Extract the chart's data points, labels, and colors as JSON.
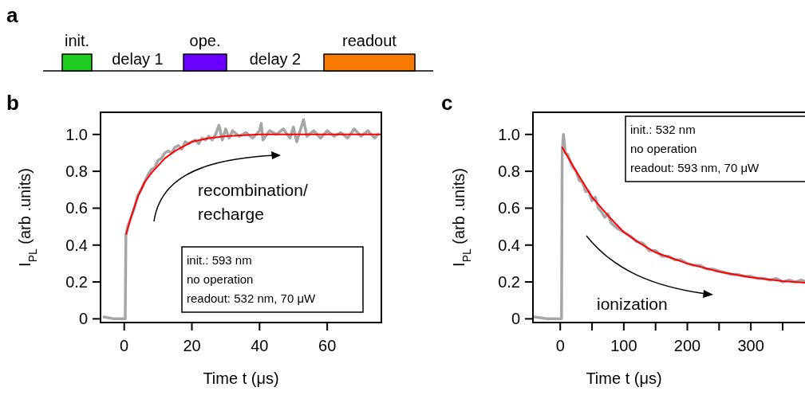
{
  "chart_data": [
    {
      "type": "other",
      "title": "a",
      "categories": [
        "init.",
        "delay 1",
        "ope.",
        "delay 2",
        "readout"
      ],
      "colors": [
        "#1fcc1f",
        null,
        "#6a00ff",
        null,
        "#f97a00"
      ]
    },
    {
      "type": "line",
      "title": "b",
      "xlabel": "Time t (μs)",
      "ylabel": "I$_{PL}$ (arb .units)",
      "xlim": [
        -7,
        76
      ],
      "ylim": [
        -0.02,
        1.12
      ],
      "xticks": [
        0,
        20,
        40,
        60
      ],
      "yticks": [
        0,
        0.2,
        0.4,
        0.6,
        0.8,
        {
          "value": 1,
          "label": "1.0"
        }
      ],
      "grid": false,
      "annotations": [
        "recombination/\nrecharge",
        "init.: 593 nm\nno operation\nreadout: 532 nm, 70 μW"
      ],
      "series": [
        {
          "color": "#a6a6a6",
          "x": [
            -6,
            -3,
            0,
            0.3,
            0.5,
            1,
            2,
            3,
            4,
            5,
            6,
            7,
            8,
            9,
            10,
            11,
            12,
            13,
            14,
            15,
            16,
            17,
            18,
            19,
            20,
            21,
            22,
            23,
            24,
            25,
            26,
            27,
            28,
            29,
            30,
            31,
            32,
            34,
            36,
            38,
            40,
            40.5,
            41,
            43,
            45,
            47,
            49,
            50,
            51,
            53,
            54,
            56,
            58,
            60,
            62,
            64,
            66,
            68,
            70,
            72,
            74,
            75
          ],
          "values": [
            0.01,
            0.0,
            0.0,
            0.0,
            0.45,
            0.5,
            0.55,
            0.6,
            0.67,
            0.7,
            0.74,
            0.78,
            0.81,
            0.82,
            0.86,
            0.87,
            0.9,
            0.91,
            0.9,
            0.93,
            0.94,
            0.92,
            0.96,
            0.95,
            0.96,
            0.97,
            0.95,
            0.98,
            0.97,
            0.99,
            0.97,
            1.0,
            1.05,
            0.97,
            1.03,
            0.98,
            1.02,
            0.99,
            1.01,
            0.98,
            1.02,
            1.06,
            0.97,
            1.02,
            1.0,
            1.03,
            0.98,
            1.04,
            0.96,
            1.08,
            0.99,
            1.02,
            0.98,
            1.02,
            0.99,
            1.01,
            0.98,
            1.03,
            0.99,
            1.02,
            0.98,
            1.0
          ]
        },
        {
          "color": "#ff0000",
          "x": [
            0.6,
            2,
            4,
            6,
            8,
            10,
            12,
            15,
            20,
            25,
            30,
            40,
            50,
            76
          ],
          "values": [
            0.46,
            0.55,
            0.66,
            0.74,
            0.79,
            0.83,
            0.87,
            0.91,
            0.96,
            0.98,
            0.99,
            1.0,
            1.0,
            1.0
          ]
        }
      ]
    },
    {
      "type": "line",
      "title": "c",
      "xlabel": "Time t (μs)",
      "ylabel": "I$_{PL}$ (arb .units)",
      "xlim": [
        -43,
        389
      ],
      "ylim": [
        -0.02,
        1.12
      ],
      "xticks": [
        0,
        {
          "value": 50,
          "label": null
        },
        100,
        {
          "value": 150,
          "label": null
        },
        200,
        {
          "value": 250,
          "label": null
        },
        300,
        {
          "value": 350,
          "label": null
        }
      ],
      "yticks": [
        0,
        0.2,
        0.4,
        0.6,
        0.8,
        {
          "value": 1,
          "label": "1.0"
        }
      ],
      "grid": false,
      "annotations": [
        "ionization",
        "init.: 532 nm\nno operation\nreadout: 593 nm, 70 μW"
      ],
      "series": [
        {
          "color": "#a6a6a6",
          "x": [
            -40,
            -20,
            0,
            2,
            3,
            5,
            8,
            12,
            16,
            20,
            25,
            30,
            35,
            40,
            45,
            50,
            55,
            60,
            65,
            70,
            75,
            80,
            90,
            100,
            110,
            120,
            130,
            140,
            150,
            160,
            170,
            180,
            190,
            200,
            210,
            220,
            230,
            240,
            250,
            260,
            270,
            280,
            290,
            300,
            310,
            320,
            330,
            340,
            350,
            360,
            370,
            380,
            388
          ],
          "values": [
            0.01,
            0.0,
            0.0,
            0.0,
            0.9,
            1.0,
            0.9,
            0.89,
            0.85,
            0.82,
            0.8,
            0.75,
            0.74,
            0.69,
            0.69,
            0.64,
            0.66,
            0.6,
            0.58,
            0.55,
            0.57,
            0.52,
            0.49,
            0.47,
            0.45,
            0.42,
            0.41,
            0.37,
            0.37,
            0.34,
            0.34,
            0.32,
            0.32,
            0.3,
            0.29,
            0.29,
            0.27,
            0.27,
            0.26,
            0.25,
            0.24,
            0.24,
            0.23,
            0.23,
            0.22,
            0.22,
            0.21,
            0.22,
            0.2,
            0.21,
            0.2,
            0.21,
            0.2
          ]
        },
        {
          "color": "#ff0000",
          "x": [
            3,
            25,
            50,
            75,
            100,
            125,
            150,
            175,
            200,
            250,
            300,
            350,
            389
          ],
          "values": [
            0.93,
            0.8,
            0.66,
            0.56,
            0.47,
            0.41,
            0.36,
            0.33,
            0.3,
            0.255,
            0.225,
            0.205,
            0.195
          ]
        }
      ]
    }
  ]
}
